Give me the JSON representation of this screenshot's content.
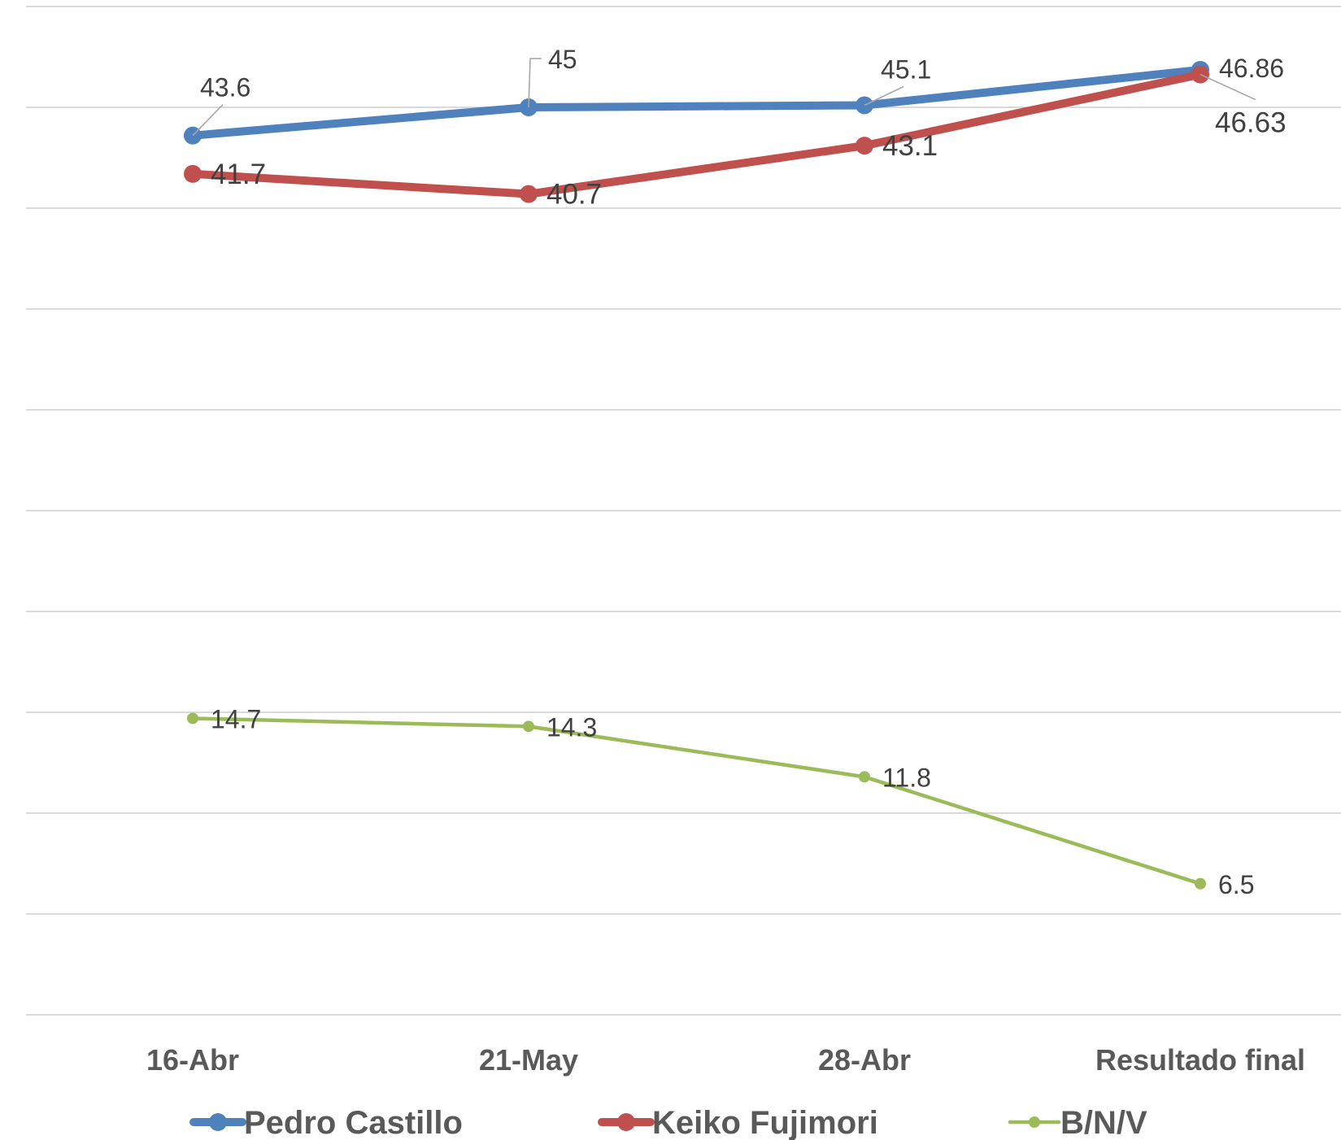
{
  "chart_data": {
    "type": "line",
    "categories": [
      "16-Abr",
      "21-May",
      "28-Abr",
      "Resultado final"
    ],
    "series": [
      {
        "name": "Pedro Castillo",
        "values": [
          43.6,
          45,
          45.1,
          46.86
        ],
        "labels": [
          "43.6",
          "45",
          "45.1",
          "46.86"
        ],
        "color": "#4F81BD"
      },
      {
        "name": "Keiko Fujimori",
        "values": [
          41.7,
          40.7,
          43.1,
          46.63
        ],
        "labels": [
          "41.7",
          "40.7",
          "43.1",
          "46.63"
        ],
        "color": "#C0504D"
      },
      {
        "name": "B/N/V",
        "values": [
          14.7,
          14.3,
          11.8,
          6.5
        ],
        "labels": [
          "14.7",
          "14.3",
          "11.8",
          "6.5"
        ],
        "color": "#9BBB59"
      }
    ],
    "ylim": [
      0,
      50
    ],
    "grid": true,
    "legend_position": "bottom"
  }
}
